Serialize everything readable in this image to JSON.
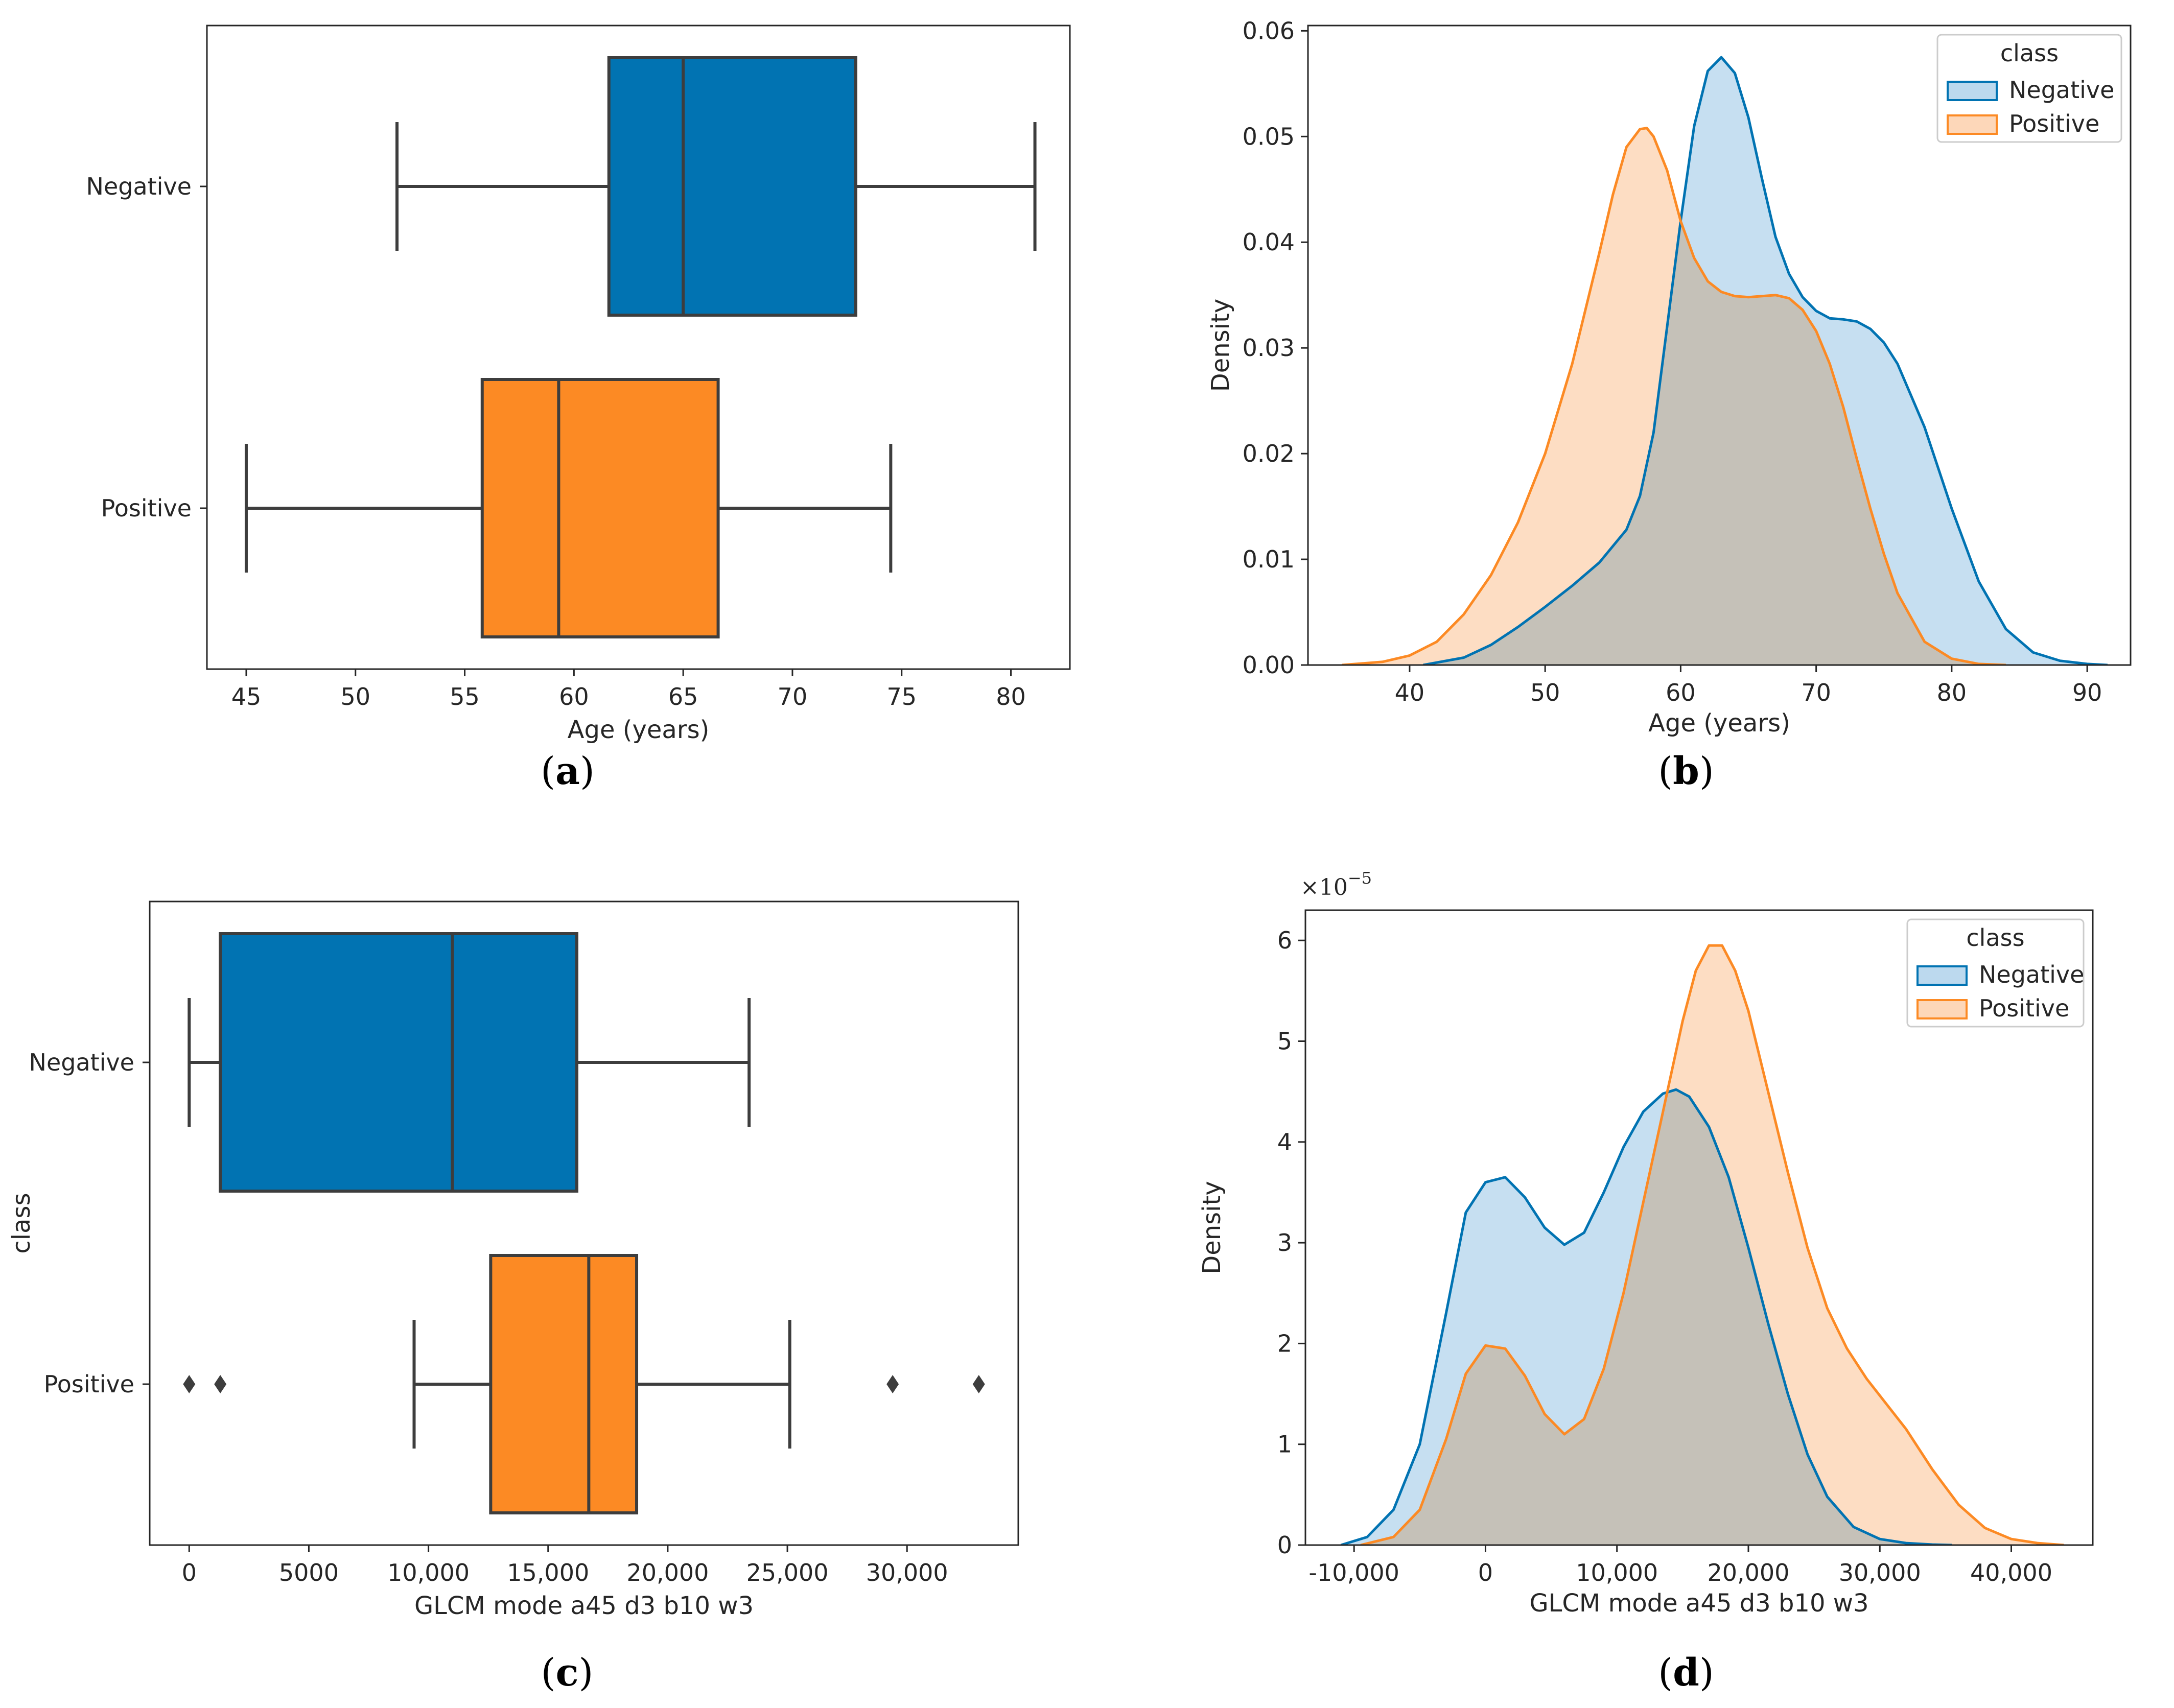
{
  "colors": {
    "negative": "#0173b2",
    "positive": "#fc8a24",
    "negative_fill": "#bcd9ee",
    "positive_fill": "#fdd7b9",
    "overlap_fill": "#c8c4bd",
    "box_edge": "#3d3d3d"
  },
  "chart_data": [
    {
      "type": "box",
      "panel": "a",
      "panel_label_open": "(",
      "panel_label_letter": "a",
      "panel_label_close": ")",
      "xlabel": "Age (years)",
      "ylabel": "",
      "xlim": [
        43.2,
        82.7
      ],
      "xticks": [
        "45",
        "50",
        "55",
        "60",
        "65",
        "70",
        "75",
        "80"
      ],
      "xtick_values": [
        45,
        50,
        55,
        60,
        65,
        70,
        75,
        80
      ],
      "categories": [
        "Negative",
        "Positive"
      ],
      "boxes": [
        {
          "name": "Negative",
          "whisker_low": 51.9,
          "q1": 61.6,
          "median": 65.0,
          "q3": 72.9,
          "whisker_high": 81.1,
          "outliers": []
        },
        {
          "name": "Positive",
          "whisker_low": 45.0,
          "q1": 55.8,
          "median": 59.3,
          "q3": 66.6,
          "whisker_high": 74.5,
          "outliers": []
        }
      ]
    },
    {
      "type": "area",
      "panel": "b",
      "panel_label_open": "(",
      "panel_label_letter": "b",
      "panel_label_close": ")",
      "xlabel": "Age (years)",
      "ylabel": "Density",
      "xlim": [
        32.5,
        93.2
      ],
      "ylim": [
        0,
        0.0605
      ],
      "xticks": [
        "40",
        "50",
        "60",
        "70",
        "80",
        "90"
      ],
      "xtick_values": [
        40,
        50,
        60,
        70,
        80,
        90
      ],
      "yticks": [
        "0.00",
        "0.01",
        "0.02",
        "0.03",
        "0.04",
        "0.05",
        "0.06"
      ],
      "ytick_values": [
        0,
        0.01,
        0.02,
        0.03,
        0.04,
        0.05,
        0.06
      ],
      "legend": {
        "title": "class",
        "position": "top-right",
        "entries": [
          "Negative",
          "Positive"
        ]
      },
      "series": [
        {
          "name": "Negative",
          "x": [
            41,
            44,
            46,
            48,
            50,
            52,
            54,
            56,
            57,
            58,
            59,
            60,
            61,
            62,
            63,
            64,
            65,
            66,
            67,
            68,
            69,
            70,
            71,
            72,
            73,
            74,
            75,
            76,
            78,
            80,
            82,
            84,
            86,
            88,
            90,
            91.5
          ],
          "y": [
            0,
            0.0007,
            0.0019,
            0.0036,
            0.0055,
            0.0075,
            0.0097,
            0.0128,
            0.016,
            0.022,
            0.032,
            0.042,
            0.051,
            0.0562,
            0.0575,
            0.056,
            0.0518,
            0.046,
            0.0405,
            0.037,
            0.0348,
            0.0335,
            0.0328,
            0.0327,
            0.0325,
            0.0318,
            0.0305,
            0.0285,
            0.0225,
            0.0148,
            0.0079,
            0.0034,
            0.0012,
            0.0004,
            0.0001,
            0
          ]
        },
        {
          "name": "Positive",
          "x": [
            35,
            38,
            40,
            42,
            44,
            46,
            48,
            50,
            52,
            54,
            55,
            56,
            57,
            57.5,
            58,
            59,
            60,
            61,
            62,
            63,
            64,
            65,
            66,
            67,
            68,
            69,
            70,
            71,
            72,
            73,
            74,
            75,
            76,
            78,
            80,
            82,
            84
          ],
          "y": [
            0,
            0.0003,
            0.0009,
            0.0022,
            0.0048,
            0.0085,
            0.0135,
            0.02,
            0.0285,
            0.039,
            0.0445,
            0.049,
            0.0507,
            0.0508,
            0.05,
            0.0468,
            0.042,
            0.0385,
            0.0363,
            0.0353,
            0.0349,
            0.0348,
            0.0349,
            0.035,
            0.0347,
            0.0336,
            0.0316,
            0.0285,
            0.0244,
            0.0195,
            0.0148,
            0.0105,
            0.0068,
            0.0022,
            0.0006,
            0.0001,
            0
          ]
        }
      ]
    },
    {
      "type": "box",
      "panel": "c",
      "panel_label_open": "(",
      "panel_label_letter": "c",
      "panel_label_close": ")",
      "xlabel": "GLCM mode a45 d3 b10 w3",
      "ylabel": "class",
      "xlim": [
        -1650,
        34650
      ],
      "xticks": [
        "0",
        "5000",
        "10,000",
        "15,000",
        "20,000",
        "25,000",
        "30,000"
      ],
      "xtick_values": [
        0,
        5000,
        10000,
        15000,
        20000,
        25000,
        30000
      ],
      "categories": [
        "Negative",
        "Positive"
      ],
      "boxes": [
        {
          "name": "Negative",
          "whisker_low": 0,
          "q1": 1300,
          "median": 11000,
          "q3": 16200,
          "whisker_high": 23400,
          "outliers": []
        },
        {
          "name": "Positive",
          "whisker_low": 9400,
          "q1": 12600,
          "median": 16700,
          "q3": 18700,
          "whisker_high": 25100,
          "outliers": [
            0,
            1300,
            29400,
            33000
          ]
        }
      ]
    },
    {
      "type": "area",
      "panel": "d",
      "panel_label_open": "(",
      "panel_label_letter": "d",
      "panel_label_close": ")",
      "xlabel": "GLCM mode a45 d3 b10 w3",
      "ylabel": "Density",
      "offset_text_base": "×10",
      "offset_text_exp": "−5",
      "xlim": [
        -13700,
        46200
      ],
      "ylim": [
        0,
        6.3
      ],
      "xticks": [
        "-10,000",
        "0",
        "10,000",
        "20,000",
        "30,000",
        "40,000"
      ],
      "xtick_values": [
        -10000,
        0,
        10000,
        20000,
        30000,
        40000
      ],
      "yticks": [
        "0",
        "1",
        "2",
        "3",
        "4",
        "5",
        "6"
      ],
      "ytick_values": [
        0,
        1,
        2,
        3,
        4,
        5,
        6
      ],
      "legend": {
        "title": "class",
        "position": "top-right",
        "entries": [
          "Negative",
          "Positive"
        ]
      },
      "series": [
        {
          "name": "Negative",
          "x": [
            -11000,
            -9000,
            -7000,
            -5000,
            -3000,
            -1500,
            0,
            1500,
            3000,
            4500,
            6000,
            7500,
            9000,
            10500,
            12000,
            13500,
            14500,
            15500,
            17000,
            18500,
            20000,
            21500,
            23000,
            24500,
            26000,
            28000,
            30000,
            32000,
            34000,
            35500
          ],
          "y": [
            0,
            0.08,
            0.35,
            1.0,
            2.3,
            3.3,
            3.6,
            3.65,
            3.45,
            3.15,
            2.98,
            3.1,
            3.5,
            3.95,
            4.3,
            4.48,
            4.52,
            4.45,
            4.15,
            3.65,
            2.95,
            2.2,
            1.5,
            0.9,
            0.48,
            0.18,
            0.06,
            0.02,
            0.005,
            0
          ]
        },
        {
          "name": "Positive",
          "x": [
            -9500,
            -7000,
            -5000,
            -3000,
            -1500,
            0,
            1500,
            3000,
            4500,
            6000,
            7500,
            9000,
            10500,
            12000,
            13500,
            15000,
            16000,
            17000,
            18000,
            19000,
            20000,
            21500,
            23000,
            24500,
            26000,
            27500,
            29000,
            30500,
            32000,
            34000,
            36000,
            38000,
            40000,
            42000,
            44000
          ],
          "y": [
            0,
            0.08,
            0.35,
            1.05,
            1.7,
            1.98,
            1.95,
            1.68,
            1.3,
            1.1,
            1.25,
            1.75,
            2.5,
            3.4,
            4.3,
            5.2,
            5.7,
            5.95,
            5.95,
            5.7,
            5.3,
            4.5,
            3.7,
            2.95,
            2.35,
            1.95,
            1.65,
            1.4,
            1.15,
            0.75,
            0.4,
            0.17,
            0.06,
            0.02,
            0
          ]
        }
      ]
    }
  ]
}
